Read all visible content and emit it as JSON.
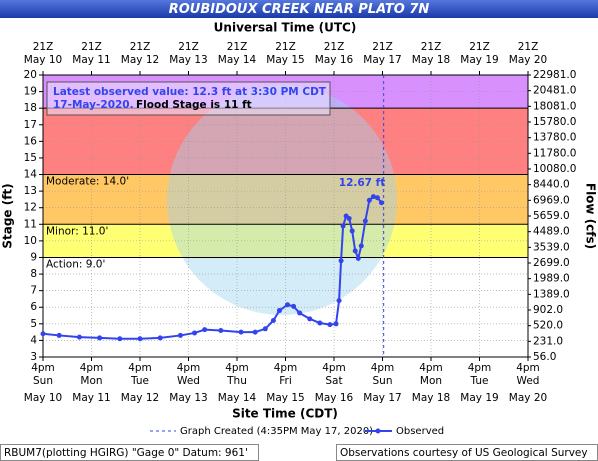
{
  "chart_data": {
    "type": "hydrograph",
    "title": "ROUBIDOUX CREEK NEAR PLATO 7N",
    "x2_label": "Universal Time (UTC)",
    "x_label": "Site Time (CDT)",
    "y_label": "Stage (ft)",
    "y2_label": "Flow (cfs)",
    "xlim": [
      "May 10 16:00",
      "May 20 16:00"
    ],
    "xticks": [
      {
        "value": "May 10 16:00",
        "label": [
          "4pm",
          "Sun",
          "May 10"
        ]
      },
      {
        "value": "May 11 16:00",
        "label": [
          "4pm",
          "Mon",
          "May 11"
        ]
      },
      {
        "value": "May 12 16:00",
        "label": [
          "4pm",
          "Tue",
          "May 12"
        ]
      },
      {
        "value": "May 13 16:00",
        "label": [
          "4pm",
          "Wed",
          "May 13"
        ]
      },
      {
        "value": "May 14 16:00",
        "label": [
          "4pm",
          "Thu",
          "May 14"
        ]
      },
      {
        "value": "May 15 16:00",
        "label": [
          "4pm",
          "Fri",
          "May 15"
        ]
      },
      {
        "value": "May 16 16:00",
        "label": [
          "4pm",
          "Sat",
          "May 16"
        ]
      },
      {
        "value": "May 17 16:00",
        "label": [
          "4pm",
          "Sun",
          "May 17"
        ]
      },
      {
        "value": "May 18 16:00",
        "label": [
          "4pm",
          "Mon",
          "May 18"
        ]
      },
      {
        "value": "May 19 16:00",
        "label": [
          "4pm",
          "Tue",
          "May 19"
        ]
      },
      {
        "value": "May 20 16:00",
        "label": [
          "4pm",
          "Wed",
          "May 20"
        ]
      }
    ],
    "x2ticks": [
      {
        "value": "May 10 16:00",
        "label": [
          "21Z",
          "May 10"
        ]
      },
      {
        "value": "May 11 16:00",
        "label": [
          "21Z",
          "May 11"
        ]
      },
      {
        "value": "May 12 16:00",
        "label": [
          "21Z",
          "May 12"
        ]
      },
      {
        "value": "May 13 16:00",
        "label": [
          "21Z",
          "May 13"
        ]
      },
      {
        "value": "May 14 16:00",
        "label": [
          "21Z",
          "May 14"
        ]
      },
      {
        "value": "May 15 16:00",
        "label": [
          "21Z",
          "May 15"
        ]
      },
      {
        "value": "May 16 16:00",
        "label": [
          "21Z",
          "May 16"
        ]
      },
      {
        "value": "May 17 16:00",
        "label": [
          "21Z",
          "May 17"
        ]
      },
      {
        "value": "May 18 16:00",
        "label": [
          "21Z",
          "May 18"
        ]
      },
      {
        "value": "May 19 16:00",
        "label": [
          "21Z",
          "May 19"
        ]
      },
      {
        "value": "May 20 16:00",
        "label": [
          "21Z",
          "May 20"
        ]
      }
    ],
    "ylim": [
      3,
      20
    ],
    "yticks": [
      3,
      4,
      5,
      6,
      7,
      8,
      9,
      10,
      11,
      12,
      13,
      14,
      15,
      16,
      17,
      18,
      19,
      20
    ],
    "y2ticks": [
      {
        "value": 56,
        "label": "56.0"
      },
      {
        "value": 231,
        "label": "231.0"
      },
      {
        "value": 520,
        "label": "520.0"
      },
      {
        "value": 902,
        "label": "902.0"
      },
      {
        "value": 1389,
        "label": "1389.0"
      },
      {
        "value": 1989,
        "label": "1989.0"
      },
      {
        "value": 2699,
        "label": "2699.0"
      },
      {
        "value": 3539,
        "label": "3539.0"
      },
      {
        "value": 4489,
        "label": "4489.0"
      },
      {
        "value": 5659,
        "label": "5659.0"
      },
      {
        "value": 6969,
        "label": "6969.0"
      },
      {
        "value": 8440,
        "label": "8440.0"
      },
      {
        "value": 10080,
        "label": "10080.0"
      },
      {
        "value": 11780,
        "label": "11780.0"
      },
      {
        "value": 13780,
        "label": "13780.0"
      },
      {
        "value": 15780,
        "label": "15780.0"
      },
      {
        "value": 18081,
        "label": "18081.0"
      },
      {
        "value": 20481,
        "label": "20481.0"
      },
      {
        "value": 22981,
        "label": "22981.0"
      }
    ],
    "grid": true,
    "bands": [
      {
        "from": 9,
        "to": 11,
        "color": "#ffff73"
      },
      {
        "from": 11,
        "to": 14,
        "color": "#ffc864"
      },
      {
        "from": 14,
        "to": 18,
        "color": "#ff8080"
      },
      {
        "from": 18,
        "to": 20,
        "color": "#d890ff"
      }
    ],
    "thresholds": [
      {
        "value": 9,
        "label": "Action: 9.0'"
      },
      {
        "value": 11,
        "label": "Minor: 11.0'"
      },
      {
        "value": 14,
        "label": "Moderate: 14.0'"
      }
    ],
    "annotation": {
      "line1": "Latest observed value: 12.3 ft at 3:30 PM CDT",
      "date": "17-May-2020.",
      "flood_stage": "Flood Stage is 11 ft"
    },
    "peak_label": "12.67 ft",
    "created": {
      "x": "May 17 16:35",
      "label": "Graph Created (4:35PM May 17, 2020)"
    },
    "series": [
      {
        "name": "Observed",
        "color": "#3344ee",
        "x": [
          "May 10 16:00",
          "May 11 00:00",
          "May 11 10:00",
          "May 11 20:00",
          "May 12 06:00",
          "May 12 16:00",
          "May 13 02:00",
          "May 13 12:00",
          "May 13 19:00",
          "May 14 00:00",
          "May 14 08:00",
          "May 14 18:00",
          "May 15 01:00",
          "May 15 06:00",
          "May 15 10:00",
          "May 15 13:00",
          "May 15 17:00",
          "May 15 20:00",
          "May 15 23:00",
          "May 16 04:00",
          "May 16 09:00",
          "May 16 14:00",
          "May 16 17:00",
          "May 16 18:30",
          "May 16 19:30",
          "May 16 20:30",
          "May 16 22:00",
          "May 16 23:30",
          "May 17 01:00",
          "May 17 02:30",
          "May 17 04:00",
          "May 17 05:30",
          "May 17 07:30",
          "May 17 09:30",
          "May 17 11:30",
          "May 17 13:30",
          "May 17 15:30"
        ],
        "values": [
          4.4,
          4.3,
          4.2,
          4.15,
          4.1,
          4.1,
          4.15,
          4.3,
          4.45,
          4.65,
          4.6,
          4.5,
          4.5,
          4.7,
          5.2,
          5.8,
          6.15,
          6.05,
          5.65,
          5.3,
          5.05,
          4.95,
          5.0,
          6.4,
          8.8,
          10.9,
          11.5,
          11.35,
          10.6,
          9.4,
          8.95,
          9.7,
          11.2,
          12.45,
          12.67,
          12.6,
          12.3
        ]
      }
    ],
    "footer_left": "RBUM7(plotting HGIRG) \"Gage 0\" Datum: 961'",
    "footer_right": "Observations courtesy of US Geological Survey"
  }
}
